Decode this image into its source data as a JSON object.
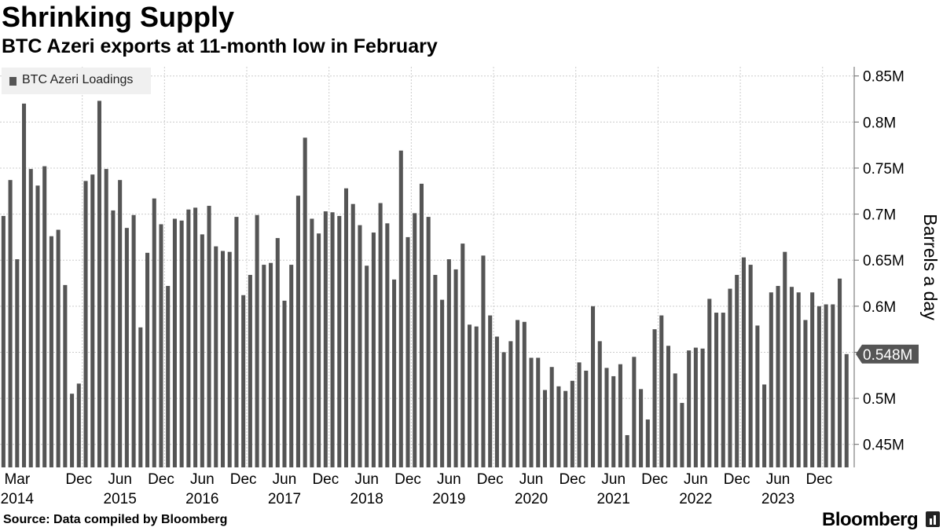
{
  "header": {
    "title": "Shrinking Supply",
    "subtitle": "BTC Azeri exports at 11-month low in February"
  },
  "legend": {
    "label": "BTC Azeri Loadings"
  },
  "footer": {
    "source": "Source: Data compiled by Bloomberg",
    "brand": "Bloomberg"
  },
  "colors": {
    "bar": "#555555",
    "grid": "#cccccc",
    "callout_bg": "#555555",
    "callout_text": "#ffffff"
  },
  "chart_data": {
    "type": "bar",
    "title": "Shrinking Supply",
    "subtitle": "BTC Azeri exports at 11-month low in February",
    "ylabel": "Barrels a day",
    "ylim": [
      0.425,
      0.86
    ],
    "yticks": [
      0.45,
      0.5,
      0.55,
      0.6,
      0.65,
      0.7,
      0.75,
      0.8,
      0.85
    ],
    "ytick_labels": [
      "0.45M",
      "0.5M",
      "",
      "0.6M",
      "0.65M",
      "0.7M",
      "0.75M",
      "0.8M",
      "0.85M"
    ],
    "y_unit_suffix": "M",
    "grid": true,
    "legend_position": "top-left",
    "series": [
      {
        "name": "BTC Azeri Loadings",
        "start": "2014-01",
        "values": [
          0.698,
          0.737,
          0.651,
          0.82,
          0.749,
          0.731,
          0.752,
          0.676,
          0.683,
          0.623,
          0.505,
          0.516,
          0.736,
          0.743,
          0.823,
          0.749,
          0.704,
          0.737,
          0.685,
          0.699,
          0.577,
          0.658,
          0.717,
          0.689,
          0.622,
          0.695,
          0.693,
          0.705,
          0.707,
          0.678,
          0.709,
          0.665,
          0.66,
          0.659,
          0.697,
          0.612,
          0.634,
          0.699,
          0.645,
          0.647,
          0.674,
          0.606,
          0.645,
          0.72,
          0.783,
          0.695,
          0.679,
          0.703,
          0.702,
          0.698,
          0.728,
          0.711,
          0.688,
          0.644,
          0.68,
          0.712,
          0.69,
          0.629,
          0.769,
          0.675,
          0.701,
          0.733,
          0.697,
          0.634,
          0.607,
          0.651,
          0.64,
          0.668,
          0.58,
          0.578,
          0.655,
          0.59,
          0.567,
          0.55,
          0.562,
          0.585,
          0.583,
          0.544,
          0.544,
          0.509,
          0.534,
          0.513,
          0.508,
          0.519,
          0.539,
          0.53,
          0.6,
          0.562,
          0.533,
          0.524,
          0.537,
          0.46,
          0.545,
          0.51,
          0.477,
          0.575,
          0.59,
          0.557,
          0.527,
          0.495,
          0.552,
          0.555,
          0.554,
          0.608,
          0.593,
          0.593,
          0.619,
          0.634,
          0.653,
          0.645,
          0.579,
          0.515,
          0.615,
          0.622,
          0.659,
          0.621,
          0.615,
          0.585,
          0.615,
          0.6,
          0.602,
          0.602,
          0.63,
          0.548
        ]
      }
    ],
    "x_month_labels": [
      {
        "label": "Mar",
        "month": "2014-03"
      },
      {
        "label": "Dec",
        "month": "2014-12"
      },
      {
        "label": "Jun",
        "month": "2015-06"
      },
      {
        "label": "Dec",
        "month": "2015-12"
      },
      {
        "label": "Jun",
        "month": "2016-06"
      },
      {
        "label": "Dec",
        "month": "2016-12"
      },
      {
        "label": "Jun",
        "month": "2017-06"
      },
      {
        "label": "Dec",
        "month": "2017-12"
      },
      {
        "label": "Jun",
        "month": "2018-06"
      },
      {
        "label": "Dec",
        "month": "2018-12"
      },
      {
        "label": "Jun",
        "month": "2019-06"
      },
      {
        "label": "Dec",
        "month": "2019-12"
      },
      {
        "label": "Jun",
        "month": "2020-06"
      },
      {
        "label": "Dec",
        "month": "2020-12"
      },
      {
        "label": "Jun",
        "month": "2021-06"
      },
      {
        "label": "Dec",
        "month": "2021-12"
      },
      {
        "label": "Jun",
        "month": "2022-06"
      },
      {
        "label": "Dec",
        "month": "2022-12"
      },
      {
        "label": "Jun",
        "month": "2023-06"
      },
      {
        "label": "Dec",
        "month": "2023-12"
      }
    ],
    "x_year_labels": [
      {
        "label": "2014",
        "month": "2014-03"
      },
      {
        "label": "2015",
        "month": "2015-06"
      },
      {
        "label": "2016",
        "month": "2016-06"
      },
      {
        "label": "2017",
        "month": "2017-06"
      },
      {
        "label": "2018",
        "month": "2018-06"
      },
      {
        "label": "2019",
        "month": "2019-06"
      },
      {
        "label": "2020",
        "month": "2020-06"
      },
      {
        "label": "2021",
        "month": "2021-06"
      },
      {
        "label": "2022",
        "month": "2022-06"
      },
      {
        "label": "2023",
        "month": "2023-06"
      }
    ],
    "annotations": [
      {
        "type": "last-value-callout",
        "value": 0.548,
        "label": "0.548M"
      }
    ]
  }
}
